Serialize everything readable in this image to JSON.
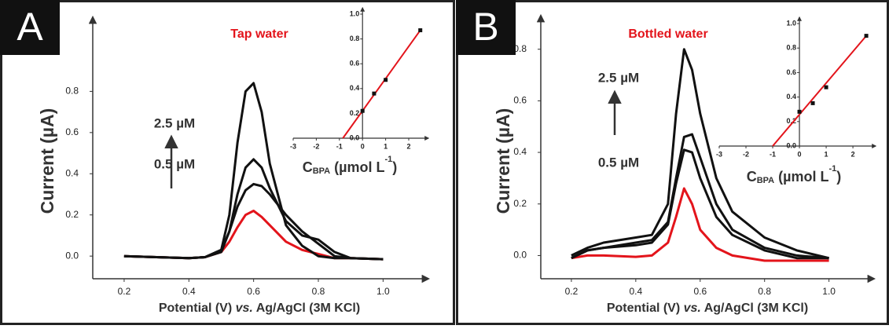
{
  "chart_data": [
    {
      "type": "line",
      "panel_label": "A",
      "title": "Tap water",
      "annotations": [
        "2.5 µM",
        "0.5 µM"
      ],
      "y_label": "Current (µA)",
      "x_label": [
        "Potential (V) ",
        "vs.",
        " Ag/AgCl (3M KCl)"
      ],
      "x": [
        0.2,
        0.3,
        0.4,
        0.45,
        0.5,
        0.525,
        0.55,
        0.575,
        0.6,
        0.625,
        0.65,
        0.7,
        0.75,
        0.8,
        0.85,
        0.9,
        1.0
      ],
      "series": [
        {
          "color": "#e3141b",
          "values": [
            0,
            -0.005,
            -0.01,
            -0.005,
            0.02,
            0.07,
            0.14,
            0.2,
            0.22,
            0.19,
            0.15,
            0.07,
            0.03,
            0.01,
            -0.01,
            -0.01,
            -0.015
          ]
        },
        {
          "color": "#111111",
          "values": [
            0,
            -0.005,
            -0.01,
            -0.005,
            0.03,
            0.12,
            0.24,
            0.32,
            0.35,
            0.34,
            0.3,
            0.2,
            0.12,
            0.06,
            0.0,
            -0.01,
            -0.015
          ]
        },
        {
          "color": "#111111",
          "values": [
            0,
            -0.005,
            -0.01,
            -0.005,
            0.02,
            0.12,
            0.3,
            0.43,
            0.47,
            0.43,
            0.33,
            0.17,
            0.1,
            0.08,
            0.02,
            -0.01,
            -0.015
          ]
        },
        {
          "color": "#111111",
          "values": [
            0,
            -0.005,
            -0.01,
            -0.005,
            0.03,
            0.2,
            0.55,
            0.8,
            0.84,
            0.7,
            0.45,
            0.15,
            0.05,
            0.0,
            -0.01,
            -0.01,
            -0.015
          ]
        }
      ],
      "xlim": [
        0.103,
        1.14
      ],
      "ylim": [
        -0.11,
        1.16
      ],
      "xticks": [
        0.2,
        0.4,
        0.6,
        0.8,
        {
          "value": 1,
          "label": "1.0"
        }
      ],
      "yticks": [
        {
          "value": 0,
          "label": "0.0"
        },
        0.2,
        0.4,
        0.6,
        0.8
      ],
      "inset": {
        "type": "scatter",
        "x": [
          0,
          0.5,
          1,
          2.5
        ],
        "values": [
          0.22,
          0.36,
          0.47,
          0.87
        ],
        "color": "#111111",
        "fit": {
          "x": [
            -0.85,
            2.5
          ],
          "values": [
            0,
            0.87
          ],
          "color": "#e3141b"
        },
        "x_label": [
          "C",
          "BPA",
          " (µmol L",
          "-1",
          ")"
        ],
        "xlim": [
          -3,
          2.85
        ],
        "ylim": [
          0,
          1
        ],
        "xticks": [
          -3,
          -2,
          -1,
          0,
          1,
          2
        ],
        "yticks": [
          {
            "value": 0,
            "label": "0.0"
          },
          0.2,
          0.4,
          0.6,
          0.8,
          {
            "value": 1,
            "label": "1.0"
          }
        ]
      }
    },
    {
      "type": "line",
      "panel_label": "B",
      "title": "Bottled water",
      "annotations": [
        "2.5 µM",
        "0.5 µM"
      ],
      "y_label": "Current (µA)",
      "x_label": [
        "Potential (V) ",
        "vs.",
        " Ag/AgCl (3M KCl)"
      ],
      "x": [
        0.2,
        0.25,
        0.3,
        0.4,
        0.45,
        0.5,
        0.525,
        0.55,
        0.575,
        0.6,
        0.65,
        0.7,
        0.8,
        0.9,
        1.0
      ],
      "series": [
        {
          "color": "#e3141b",
          "values": [
            -0.01,
            0.0,
            0.0,
            -0.005,
            0.0,
            0.05,
            0.15,
            0.26,
            0.2,
            0.1,
            0.03,
            0.0,
            -0.02,
            -0.02,
            -0.02
          ]
        },
        {
          "color": "#111111",
          "values": [
            -0.01,
            0.02,
            0.03,
            0.04,
            0.05,
            0.12,
            0.28,
            0.41,
            0.4,
            0.3,
            0.15,
            0.08,
            0.02,
            -0.01,
            -0.01
          ]
        },
        {
          "color": "#111111",
          "values": [
            -0.01,
            0.02,
            0.03,
            0.05,
            0.06,
            0.13,
            0.3,
            0.46,
            0.47,
            0.38,
            0.2,
            0.1,
            0.03,
            0.0,
            -0.01
          ]
        },
        {
          "color": "#111111",
          "values": [
            0.0,
            0.03,
            0.05,
            0.07,
            0.08,
            0.2,
            0.55,
            0.8,
            0.72,
            0.55,
            0.3,
            0.17,
            0.07,
            0.02,
            -0.01
          ]
        }
      ],
      "xlim": [
        0.105,
        1.14
      ],
      "ylim": [
        -0.09,
        0.93
      ],
      "xticks": [
        0.2,
        0.4,
        0.6,
        0.8,
        {
          "value": 1,
          "label": "1.0"
        }
      ],
      "yticks": [
        {
          "value": 0,
          "label": "0.0"
        },
        0.2,
        0.4,
        0.6,
        0.8
      ],
      "inset": {
        "type": "scatter",
        "x": [
          0,
          0.5,
          1,
          2.5
        ],
        "values": [
          0.28,
          0.35,
          0.48,
          0.9
        ],
        "color": "#111111",
        "fit": {
          "x": [
            -1,
            2.5
          ],
          "values": [
            0,
            0.9
          ],
          "color": "#e3141b"
        },
        "x_label": [
          "C",
          "BPA",
          " (µmol L",
          "-1",
          ")"
        ],
        "xlim": [
          -3,
          2.85
        ],
        "ylim": [
          0,
          1
        ],
        "xticks": [
          -3,
          -2,
          -1,
          0,
          1,
          2
        ],
        "yticks": [
          {
            "value": 0,
            "label": "0.0"
          },
          0.2,
          0.4,
          0.6,
          0.8,
          {
            "value": 1,
            "label": "1.0"
          }
        ]
      }
    }
  ]
}
